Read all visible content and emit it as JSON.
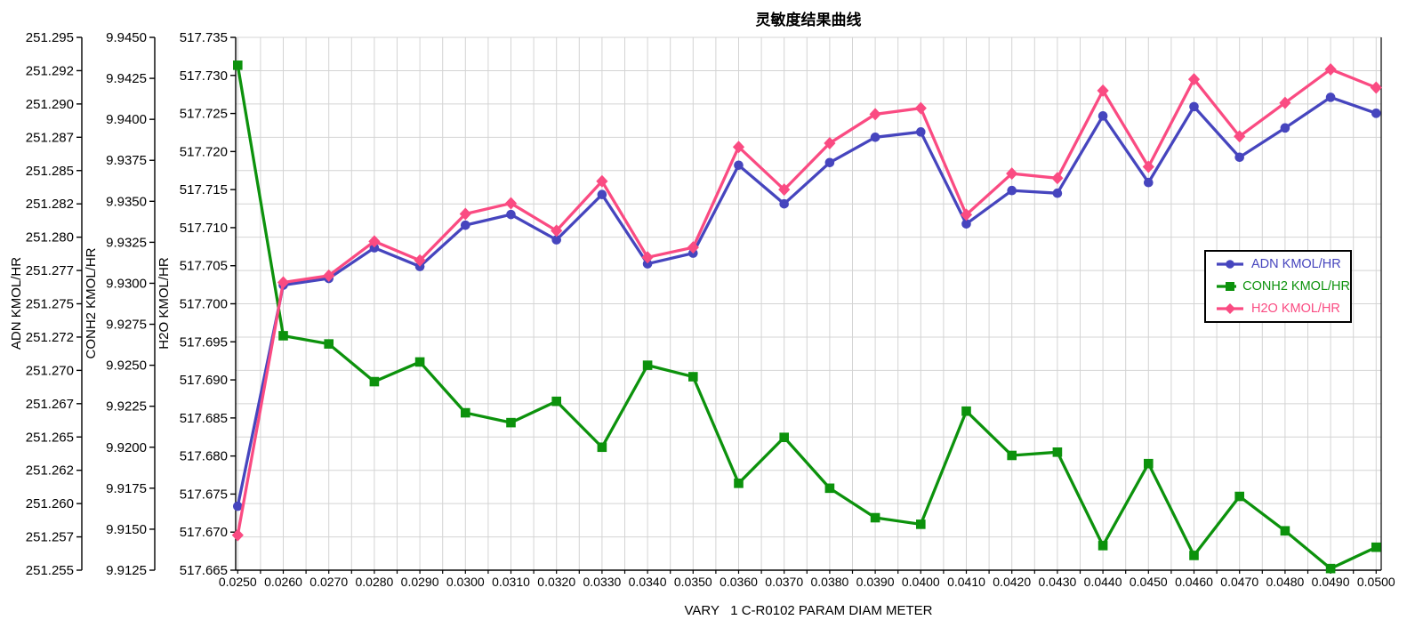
{
  "chart_data": {
    "type": "line",
    "title": "灵敏度结果曲线",
    "xlabel": "VARY   1 C-R0102 PARAM DIAM METER",
    "grid": true,
    "colors": {
      "background": "#FFFFFF",
      "gridline": "#D4D4D4",
      "axis": "#000000",
      "tick_label": "#000000",
      "adn_blue": "#4645BE",
      "conh2_green": "#0C920C",
      "h2o_pink": "#FA4B82"
    },
    "x_values": [
      0.025,
      0.026,
      0.027,
      0.028,
      0.029,
      0.03,
      0.031,
      0.032,
      0.033,
      0.034,
      0.035,
      0.036,
      0.037,
      0.038,
      0.039,
      0.04,
      0.041,
      0.042,
      0.043,
      0.044,
      0.045,
      0.046,
      0.047,
      0.048,
      0.049,
      0.05
    ],
    "x_tick_labels": [
      "0.0250",
      "0.0260",
      "0.0270",
      "0.0280",
      "0.0290",
      "0.0300",
      "0.0310",
      "0.0320",
      "0.0330",
      "0.0340",
      "0.0350",
      "0.0360",
      "0.0370",
      "0.0380",
      "0.0390",
      "0.0400",
      "0.0410",
      "0.0420",
      "0.0430",
      "0.0440",
      "0.0450",
      "0.0460",
      "0.0470",
      "0.0480",
      "0.0490",
      "0.0500"
    ],
    "y_axes": [
      {
        "title": "ADN KMOL/HR",
        "min": 251.255,
        "max": 251.295,
        "tick_step": 0.0025,
        "tick_labels": [
          "251.295",
          "251.292",
          "251.290",
          "251.287",
          "251.285",
          "251.282",
          "251.280",
          "251.277",
          "251.275",
          "251.272",
          "251.270",
          "251.267",
          "251.265",
          "251.262",
          "251.260",
          "251.257",
          "251.255"
        ]
      },
      {
        "title": "CONH2 KMOL/HR",
        "min": 9.9125,
        "max": 9.945,
        "tick_step": 0.0025,
        "tick_labels": [
          "9.9450",
          "9.9425",
          "9.9400",
          "9.9375",
          "9.9350",
          "9.9325",
          "9.9300",
          "9.9275",
          "9.9250",
          "9.9225",
          "9.9200",
          "9.9175",
          "9.9150",
          "9.9125"
        ]
      },
      {
        "title": "H2O KMOL/HR",
        "min": 517.665,
        "max": 517.735,
        "tick_step": 0.005,
        "tick_labels": [
          "517.735",
          "517.730",
          "517.725",
          "517.720",
          "517.715",
          "517.710",
          "517.705",
          "517.700",
          "517.695",
          "517.690",
          "517.685",
          "517.680",
          "517.675",
          "517.670",
          "517.665"
        ]
      }
    ],
    "series": [
      {
        "name": "ADN KMOL/HR",
        "slug": "adn",
        "axis": 0,
        "color": "#4645BE",
        "marker": "circle",
        "values": [
          251.2598,
          251.2764,
          251.2769,
          251.2792,
          251.2778,
          251.2809,
          251.2817,
          251.2798,
          251.2832,
          251.278,
          251.2788,
          251.2854,
          251.2825,
          251.2856,
          251.2875,
          251.2879,
          251.281,
          251.2835,
          251.2833,
          251.2891,
          251.2841,
          251.2898,
          251.286,
          251.2882,
          251.2905,
          251.2893
        ]
      },
      {
        "name": "CONH2 KMOL/HR",
        "slug": "conh2",
        "axis": 1,
        "color": "#0C920C",
        "marker": "square",
        "values": [
          9.9433,
          9.9268,
          9.9263,
          9.924,
          9.9252,
          9.9221,
          9.9215,
          9.9228,
          9.92,
          9.925,
          9.9243,
          9.9178,
          9.9206,
          9.9175,
          9.9157,
          9.9153,
          9.9222,
          9.9195,
          9.9197,
          9.914,
          9.919,
          9.9134,
          9.917,
          9.9149,
          9.9126,
          9.9139
        ]
      },
      {
        "name": "H2O KMOL/HR",
        "slug": "h2o",
        "axis": 2,
        "color": "#FA4B82",
        "marker": "diamond",
        "values": [
          517.6696,
          517.7028,
          517.7037,
          517.7082,
          517.7057,
          517.7118,
          517.7132,
          517.7096,
          517.7161,
          517.7061,
          517.7074,
          517.7206,
          517.715,
          517.7211,
          517.7249,
          517.7257,
          517.7117,
          517.7171,
          517.7165,
          517.728,
          517.718,
          517.7295,
          517.722,
          517.7264,
          517.7308,
          517.7284
        ]
      }
    ],
    "legend": {
      "position": "right-middle",
      "labels": [
        "ADN KMOL/HR",
        "CONH2 KMOL/HR",
        "H2O KMOL/HR"
      ]
    }
  }
}
